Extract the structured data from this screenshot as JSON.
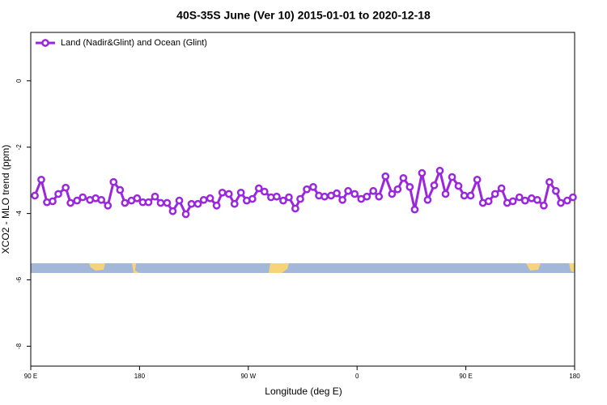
{
  "chart_data": {
    "type": "line",
    "title": "40S-35S June (Ver 10)   2015-01-01 to 2020-12-18",
    "x_label": "Longitude (deg E)",
    "y_label": "XCO2 - MLO trend (ppm)",
    "xlim": [
      90,
      540
    ],
    "ylim": [
      -8.6,
      1.46
    ],
    "xticks": [
      {
        "value": 90,
        "label": "90 E"
      },
      180,
      {
        "value": 270,
        "label": "90 W"
      },
      {
        "value": 360,
        "label": "0"
      },
      {
        "value": 450,
        "label": "90 E"
      },
      {
        "value": 540,
        "label": "180"
      }
    ],
    "yticks": [
      0,
      -2,
      -4,
      -6,
      -8
    ],
    "legend": "top-left",
    "series": [
      {
        "name": "Land (Nadir&Glint) and Ocean (Glint)",
        "color": "#9a27de",
        "x": [
          93.4,
          98.7,
          103.4,
          108.1,
          112.8,
          118.9,
          122.9,
          128.3,
          133.0,
          139.0,
          143.7,
          148.4,
          153.8,
          158.5,
          163.9,
          167.9,
          173.3,
          178.0,
          182.7,
          187.4,
          192.8,
          197.5,
          202.8,
          207.5,
          212.9,
          218.3,
          223.0,
          228.3,
          233.1,
          238.4,
          243.8,
          248.5,
          253.9,
          258.6,
          263.9,
          268.7,
          273.4,
          278.7,
          283.4,
          288.8,
          293.5,
          298.9,
          303.6,
          308.9,
          313.0,
          318.4,
          323.7,
          328.4,
          333.1,
          338.5,
          343.2,
          347.9,
          352.6,
          358.0,
          363.4,
          368.1,
          373.4,
          378.1,
          383.5,
          388.9,
          393.6,
          398.3,
          403.6,
          407.7,
          413.7,
          418.4,
          423.8,
          428.5,
          433.2,
          438.6,
          443.9,
          448.7,
          454.0,
          459.4,
          464.1,
          468.8,
          474.2,
          479.5,
          484.2,
          488.9,
          494.3,
          499.0,
          504.4,
          509.1,
          514.5,
          519.2,
          524.5,
          528.6,
          533.9,
          538.6
        ],
        "values": [
          -3.46,
          -2.98,
          -3.66,
          -3.63,
          -3.41,
          -3.22,
          -3.68,
          -3.61,
          -3.51,
          -3.59,
          -3.54,
          -3.59,
          -3.76,
          -3.05,
          -3.29,
          -3.68,
          -3.61,
          -3.54,
          -3.66,
          -3.66,
          -3.49,
          -3.68,
          -3.68,
          -3.93,
          -3.61,
          -4.02,
          -3.71,
          -3.71,
          -3.59,
          -3.54,
          -3.76,
          -3.37,
          -3.41,
          -3.71,
          -3.37,
          -3.61,
          -3.56,
          -3.24,
          -3.34,
          -3.51,
          -3.49,
          -3.61,
          -3.51,
          -3.85,
          -3.56,
          -3.27,
          -3.2,
          -3.46,
          -3.49,
          -3.46,
          -3.39,
          -3.59,
          -3.32,
          -3.41,
          -3.56,
          -3.49,
          -3.32,
          -3.49,
          -2.88,
          -3.41,
          -3.27,
          -2.93,
          -3.2,
          -3.88,
          -2.78,
          -3.59,
          -3.15,
          -2.71,
          -3.41,
          -2.9,
          -3.17,
          -3.46,
          -3.46,
          -2.98,
          -3.68,
          -3.63,
          -3.41,
          -3.24,
          -3.68,
          -3.63,
          -3.51,
          -3.61,
          -3.54,
          -3.59,
          -3.76,
          -3.05,
          -3.32,
          -3.68,
          -3.61,
          -3.51
        ]
      }
    ]
  }
}
